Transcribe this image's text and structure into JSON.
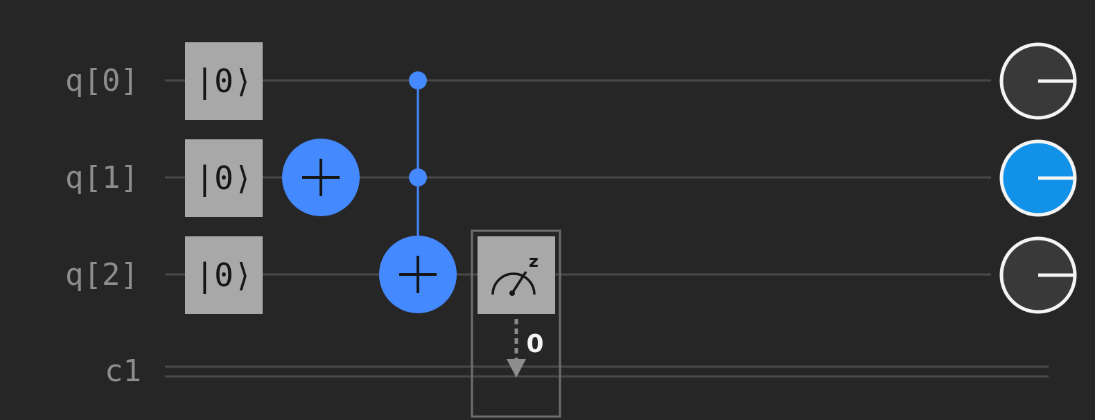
{
  "circuit": {
    "qubits": [
      "q[0]",
      "q[1]",
      "q[2]"
    ],
    "classical_register": "c1",
    "gates": [
      {
        "type": "reset",
        "qubit": 0,
        "label": "|0⟩"
      },
      {
        "type": "reset",
        "qubit": 1,
        "label": "|0⟩"
      },
      {
        "type": "reset",
        "qubit": 2,
        "label": "|0⟩"
      },
      {
        "type": "x",
        "qubit": 1
      },
      {
        "type": "ccx",
        "controls": [
          0,
          1
        ],
        "target": 2
      },
      {
        "type": "measure",
        "qubit": 2,
        "basis_label": "z",
        "clbit_label": "0"
      }
    ],
    "qubit_states": [
      {
        "qubit": 0,
        "state": "off"
      },
      {
        "qubit": 1,
        "state": "on"
      },
      {
        "qubit": 2,
        "state": "off"
      }
    ]
  },
  "colors": {
    "background": "#262626",
    "wire": "#4a4a4a",
    "gate_box": "#a8a8a8",
    "x_gate": "#4589ff",
    "control": "#4589ff",
    "state_on": "#1192e8",
    "state_off": "#393939",
    "measure_frame": "#6f6f6f",
    "classical_arrow": "#8d8d8d"
  }
}
